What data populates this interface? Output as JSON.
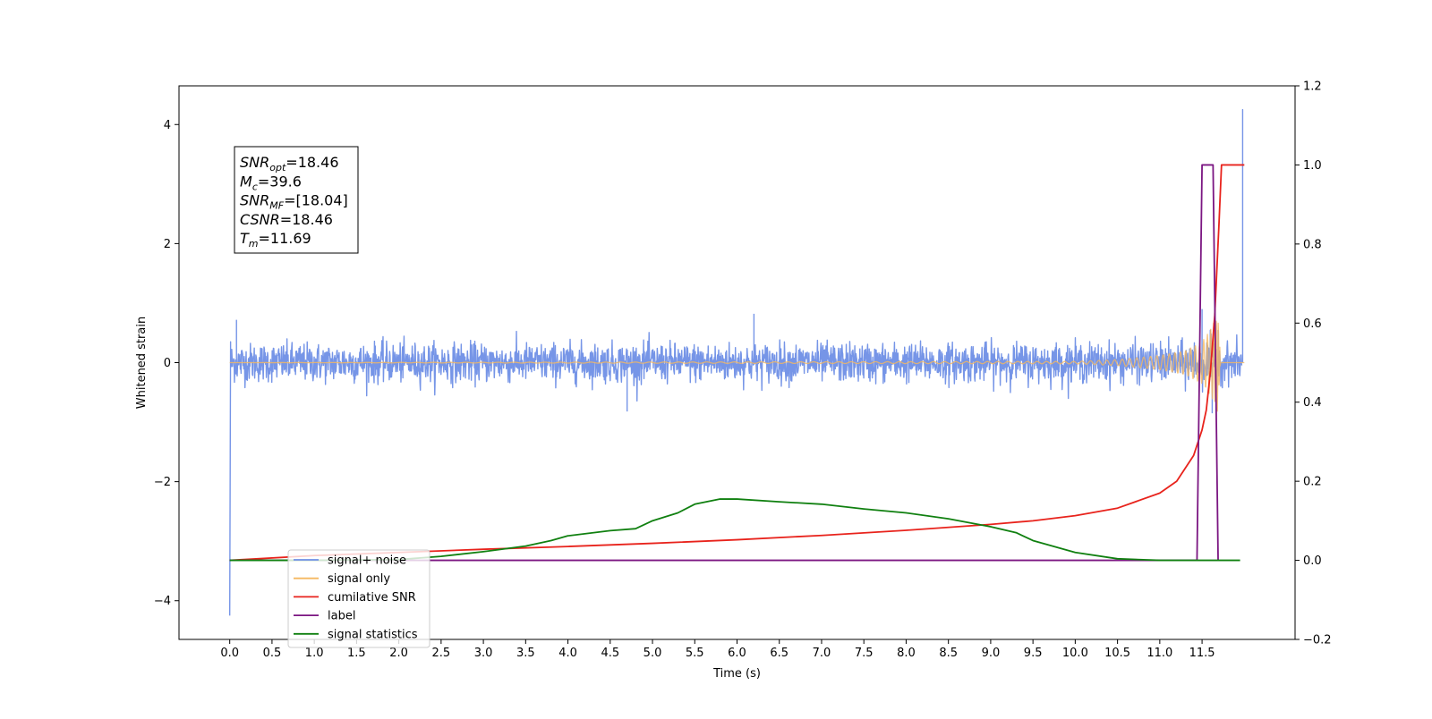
{
  "chart_data": {
    "type": "line",
    "xlabel": "Time (s)",
    "ylabel": "Whitened strain",
    "xlim": [
      -0.6,
      12.6
    ],
    "ylim": [
      -4.65,
      4.65
    ],
    "y2lim": [
      -0.2,
      1.2
    ],
    "x_ticks": [
      0.0,
      0.5,
      1.0,
      1.5,
      2.0,
      2.5,
      3.0,
      3.5,
      4.0,
      4.5,
      5.0,
      5.5,
      6.0,
      6.5,
      7.0,
      7.5,
      8.0,
      8.5,
      9.0,
      9.5,
      10.0,
      10.5,
      11.0,
      11.5
    ],
    "x_tick_labels": [
      "0.0",
      "0.5",
      "1.0",
      "1.5",
      "2.0",
      "2.5",
      "3.0",
      "3.5",
      "4.0",
      "4.5",
      "5.0",
      "5.5",
      "6.0",
      "6.5",
      "7.0",
      "7.5",
      "8.0",
      "8.5",
      "9.0",
      "9.5",
      "10.0",
      "10.5",
      "11.0",
      "11.5"
    ],
    "y_ticks": [
      -4,
      -2,
      0,
      2,
      4
    ],
    "y_tick_labels": [
      "−4",
      "−2",
      "0",
      "2",
      "4"
    ],
    "y2_ticks": [
      -0.2,
      0.0,
      0.2,
      0.4,
      0.6,
      0.8,
      1.0,
      1.2
    ],
    "y2_tick_labels": [
      "−0.2",
      "0.0",
      "0.2",
      "0.4",
      "0.6",
      "0.8",
      "1.0",
      "1.2"
    ],
    "annotation": {
      "lines": [
        {
          "main": "SNR",
          "sub": "opt",
          "value": "=18.46"
        },
        {
          "main": "M",
          "sub": "c",
          "value": "=39.6"
        },
        {
          "main": "SNR",
          "sub": "MF",
          "value": "=[18.04]"
        },
        {
          "main": "CSNR",
          "sub": "",
          "value": "=18.46"
        },
        {
          "main": "T",
          "sub": "m",
          "value": "=11.69"
        }
      ]
    },
    "legend_placement": "lower-left",
    "series": [
      {
        "name": "signal+ noise",
        "axis": "left",
        "color": "#6f8fe6",
        "noise_amplitude": 0.32,
        "points": [
          [
            0.0,
            -4.25
          ],
          [
            0.01,
            0.35
          ],
          [
            0.08,
            0.72
          ],
          [
            4.7,
            -0.82
          ],
          [
            6.2,
            0.82
          ],
          [
            11.5,
            0.9
          ],
          [
            11.62,
            -0.85
          ],
          [
            11.69,
            0.55
          ],
          [
            11.98,
            4.25
          ]
        ]
      },
      {
        "name": "signal only",
        "axis": "left",
        "color": "#f5b860",
        "points": [
          [
            0.0,
            0.0
          ],
          [
            10.0,
            0.02
          ],
          [
            10.5,
            0.05
          ],
          [
            11.0,
            0.12
          ],
          [
            11.3,
            0.2
          ],
          [
            11.5,
            0.35
          ],
          [
            11.6,
            0.55
          ],
          [
            11.69,
            0.85
          ],
          [
            11.72,
            0.0
          ],
          [
            12.0,
            0.0
          ]
        ]
      },
      {
        "name": "cumilative SNR",
        "axis": "right",
        "color": "#e8231c",
        "points": [
          [
            0.0,
            0.0
          ],
          [
            1.0,
            0.012
          ],
          [
            2.0,
            0.02
          ],
          [
            3.0,
            0.028
          ],
          [
            4.0,
            0.035
          ],
          [
            5.0,
            0.043
          ],
          [
            6.0,
            0.052
          ],
          [
            7.0,
            0.063
          ],
          [
            8.0,
            0.076
          ],
          [
            9.0,
            0.091
          ],
          [
            9.5,
            0.1
          ],
          [
            10.0,
            0.113
          ],
          [
            10.5,
            0.132
          ],
          [
            11.0,
            0.17
          ],
          [
            11.2,
            0.2
          ],
          [
            11.4,
            0.265
          ],
          [
            11.5,
            0.33
          ],
          [
            11.55,
            0.38
          ],
          [
            11.6,
            0.48
          ],
          [
            11.65,
            0.62
          ],
          [
            11.7,
            0.85
          ],
          [
            11.73,
            1.0
          ],
          [
            12.0,
            1.0
          ]
        ]
      },
      {
        "name": "label",
        "axis": "right",
        "color": "#7b1682",
        "points": [
          [
            0.0,
            0.0
          ],
          [
            11.44,
            0.0
          ],
          [
            11.5,
            1.0
          ],
          [
            11.63,
            1.0
          ],
          [
            11.69,
            0.0
          ],
          [
            11.7,
            0.0
          ]
        ]
      },
      {
        "name": "signal statistics",
        "axis": "right",
        "color": "#108010",
        "points": [
          [
            0.0,
            0.0
          ],
          [
            1.0,
            0.0
          ],
          [
            2.0,
            0.002
          ],
          [
            2.5,
            0.01
          ],
          [
            3.0,
            0.022
          ],
          [
            3.5,
            0.036
          ],
          [
            3.8,
            0.05
          ],
          [
            4.0,
            0.062
          ],
          [
            4.5,
            0.075
          ],
          [
            4.8,
            0.08
          ],
          [
            5.0,
            0.1
          ],
          [
            5.3,
            0.12
          ],
          [
            5.5,
            0.142
          ],
          [
            5.8,
            0.155
          ],
          [
            6.0,
            0.155
          ],
          [
            6.5,
            0.148
          ],
          [
            7.0,
            0.142
          ],
          [
            7.5,
            0.13
          ],
          [
            8.0,
            0.12
          ],
          [
            8.5,
            0.105
          ],
          [
            9.0,
            0.085
          ],
          [
            9.3,
            0.07
          ],
          [
            9.5,
            0.05
          ],
          [
            10.0,
            0.02
          ],
          [
            10.5,
            0.004
          ],
          [
            11.0,
            0.0
          ],
          [
            11.95,
            0.0
          ]
        ]
      }
    ]
  }
}
